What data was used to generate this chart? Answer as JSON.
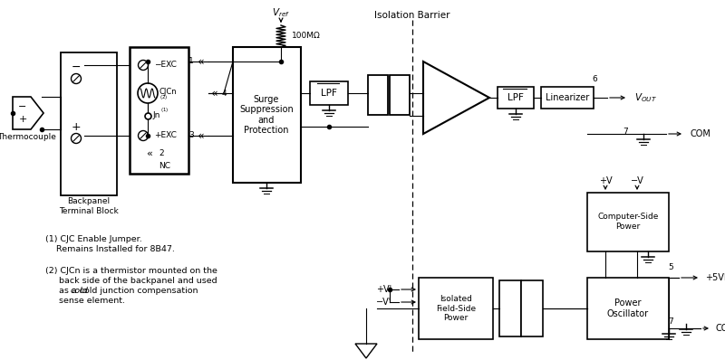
{
  "bg": "#ffffff",
  "note1_line1": "(1) CJC Enable Jumper.",
  "note1_line2": "    Remains Installed for 8B47.",
  "note2_line1": "(2) CJCn is a thermistor mounted on the",
  "note2_line2": "     back side of the backpanel and used",
  "note2_line3": "     as a cold junction compensation",
  "note2_line4": "     sense element."
}
